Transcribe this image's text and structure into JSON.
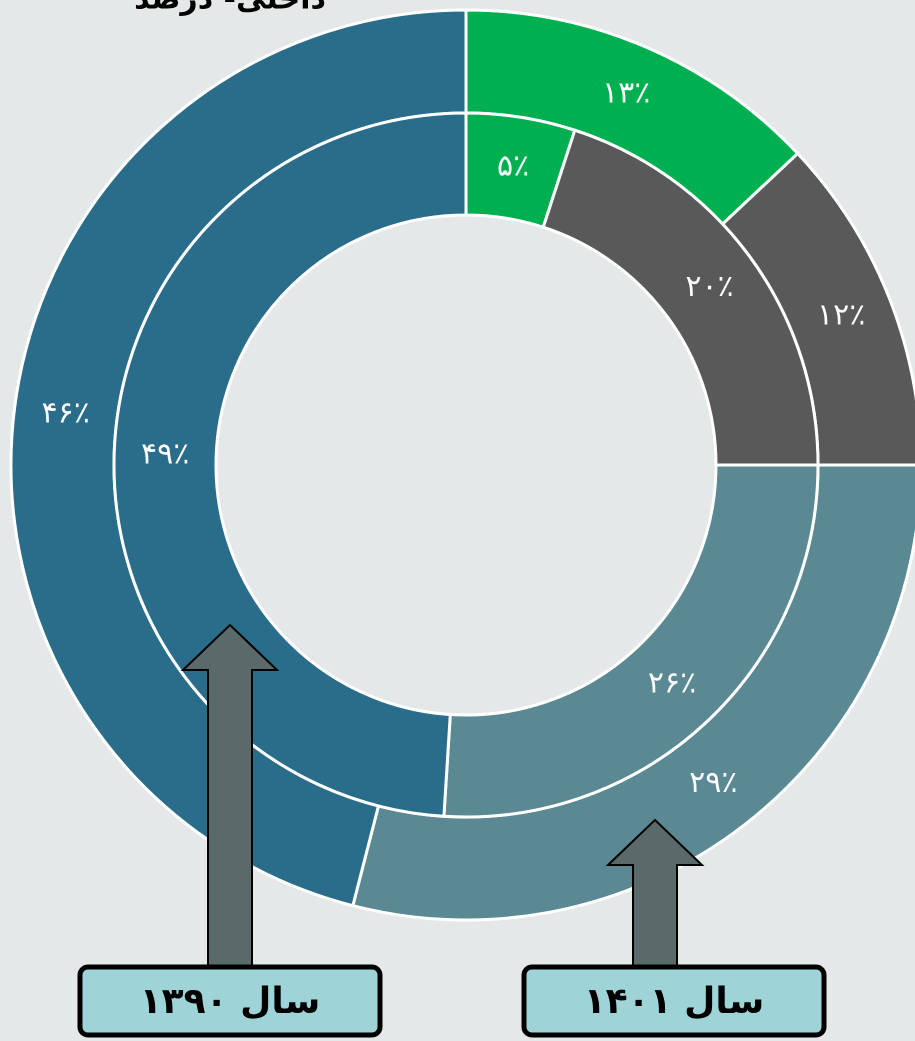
{
  "chart_data": {
    "type": "donut",
    "title": "داخلی- درصد",
    "colors": [
      "#00b050",
      "#595959",
      "#5a8994",
      "#2a6d8b"
    ],
    "series": [
      {
        "name": "سال ۱۴۰۱",
        "values": [
          13,
          12,
          29,
          46
        ],
        "value_labels": [
          "۱۳٪",
          "۱۲٪",
          "۲۹٪",
          "۴۶٪"
        ]
      },
      {
        "name": "سال ۱۳۹۰",
        "values": [
          5,
          20,
          26,
          49
        ],
        "value_labels": [
          "۵٪",
          "۲۰٪",
          "۲۶٪",
          "۴۹٪"
        ]
      }
    ]
  }
}
